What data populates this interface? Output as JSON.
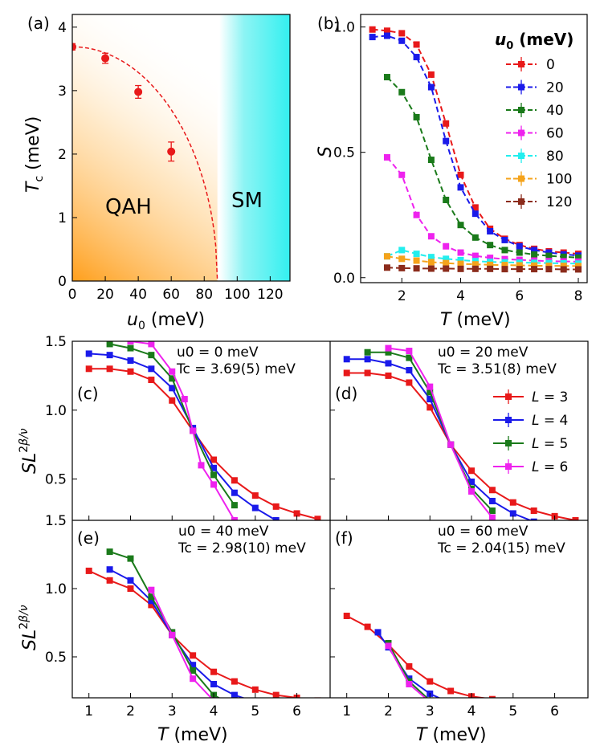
{
  "figure": {
    "panels": {
      "a": {
        "label": "(a)",
        "region_qah": "QAH",
        "region_sm": "SM"
      },
      "b": {
        "label": "(b)",
        "legend_title": "u0 (meV)"
      },
      "c": {
        "label": "(c)",
        "u0_text": "u0 = 0 meV",
        "tc_text": "Tc = 3.69(5) meV"
      },
      "d": {
        "label": "(d)",
        "u0_text": "u0 = 20 meV",
        "tc_text": "Tc = 3.51(8) meV"
      },
      "e": {
        "label": "(e)",
        "u0_text": "u0 = 40 meV",
        "tc_text": "Tc = 2.98(10) meV"
      },
      "f": {
        "label": "(f)",
        "u0_text": "u0 = 60 meV",
        "tc_text": "Tc = 2.04(15) meV"
      }
    }
  },
  "chart_data": [
    {
      "id": "a",
      "type": "scatter",
      "xlabel": "u0 (meV)",
      "ylabel": "Tc (meV)",
      "xlim": [
        0,
        132
      ],
      "ylim": [
        0,
        4.2
      ],
      "xticks": [
        0,
        20,
        40,
        60,
        80,
        100,
        120
      ],
      "yticks": [
        0,
        1,
        2,
        3,
        4
      ],
      "x": [
        0,
        20,
        40,
        60
      ],
      "y": [
        3.69,
        3.51,
        2.98,
        2.04
      ],
      "err": [
        0.05,
        0.08,
        0.1,
        0.15
      ],
      "fit_curve": {
        "Tc0": 3.69,
        "uc": 88
      },
      "boundary_u0": 88,
      "regions": [
        "QAH",
        "SM"
      ],
      "colors": {
        "points": "#e8191a",
        "qah": "#ff9f1c",
        "sm": "#33f0f0"
      }
    },
    {
      "id": "b",
      "type": "line",
      "xlabel": "T (meV)",
      "ylabel": "S",
      "xlim": [
        0.6,
        8.3
      ],
      "ylim": [
        -0.02,
        1.05
      ],
      "xticks": [
        2,
        4,
        6,
        8
      ],
      "yticks": [
        0.0,
        0.5,
        1.0
      ],
      "legend_title": "u0 (meV)",
      "series": [
        {
          "name": "0",
          "color": "#e8191a",
          "x": [
            1,
            1.5,
            2,
            2.5,
            3,
            3.5,
            4,
            4.5,
            5,
            5.5,
            6,
            6.5,
            7,
            7.5,
            8
          ],
          "y": [
            0.99,
            0.985,
            0.975,
            0.93,
            0.81,
            0.615,
            0.41,
            0.28,
            0.195,
            0.155,
            0.13,
            0.115,
            0.105,
            0.1,
            0.095
          ]
        },
        {
          "name": "20",
          "color": "#1a1aea",
          "x": [
            1,
            1.5,
            2,
            2.5,
            3,
            3.5,
            4,
            4.5,
            5,
            5.5,
            6,
            6.5,
            7,
            7.5,
            8
          ],
          "y": [
            0.96,
            0.965,
            0.945,
            0.88,
            0.76,
            0.545,
            0.36,
            0.255,
            0.185,
            0.15,
            0.125,
            0.11,
            0.1,
            0.093,
            0.088
          ]
        },
        {
          "name": "40",
          "color": "#1a7a1a",
          "x": [
            1.5,
            2,
            2.5,
            3,
            3.5,
            4,
            4.5,
            5,
            5.5,
            6,
            6.5,
            7,
            7.5,
            8
          ],
          "y": [
            0.8,
            0.74,
            0.64,
            0.47,
            0.31,
            0.21,
            0.16,
            0.13,
            0.11,
            0.1,
            0.092,
            0.087,
            0.083,
            0.08
          ]
        },
        {
          "name": "60",
          "color": "#ee22ee",
          "x": [
            1.5,
            2,
            2.5,
            3,
            3.5,
            4,
            4.5,
            5,
            5.5,
            6,
            6.5,
            7,
            7.5,
            8
          ],
          "y": [
            0.48,
            0.41,
            0.25,
            0.165,
            0.125,
            0.1,
            0.087,
            0.079,
            0.074,
            0.071,
            0.068,
            0.066,
            0.065,
            0.064
          ]
        },
        {
          "name": "80",
          "color": "#22eeee",
          "x": [
            1.5,
            2,
            2.5,
            3,
            3.5,
            4,
            4.5,
            5,
            5.5,
            6,
            6.5,
            7,
            7.5,
            8
          ],
          "y": [
            0.085,
            0.11,
            0.095,
            0.082,
            0.075,
            0.07,
            0.066,
            0.063,
            0.061,
            0.06,
            0.059,
            0.058,
            0.057,
            0.056
          ]
        },
        {
          "name": "100",
          "color": "#f5a31b",
          "x": [
            1.5,
            2,
            2.5,
            3,
            3.5,
            4,
            4.5,
            5,
            5.5,
            6,
            6.5,
            7,
            7.5,
            8
          ],
          "y": [
            0.085,
            0.075,
            0.068,
            0.062,
            0.058,
            0.055,
            0.053,
            0.051,
            0.05,
            0.049,
            0.048,
            0.047,
            0.047,
            0.046
          ]
        },
        {
          "name": "120",
          "color": "#8b2b1b",
          "x": [
            1.5,
            2,
            2.5,
            3,
            3.5,
            4,
            4.5,
            5,
            5.5,
            6,
            6.5,
            7,
            7.5,
            8
          ],
          "y": [
            0.04,
            0.038,
            0.037,
            0.036,
            0.036,
            0.035,
            0.035,
            0.035,
            0.034,
            0.034,
            0.034,
            0.034,
            0.033,
            0.033
          ]
        }
      ]
    },
    {
      "id": "c",
      "type": "line",
      "xlim": [
        0.6,
        6.8
      ],
      "ylim": [
        0.2,
        1.5
      ],
      "ylabel": "SL^(2β/ν)",
      "yticks": [
        0.5,
        1.0,
        1.5
      ],
      "series": [
        {
          "name": "L = 3",
          "color": "#e8191a",
          "x": [
            1,
            1.5,
            2,
            2.5,
            3,
            3.5,
            4,
            4.5,
            5,
            5.5,
            6,
            6.5
          ],
          "y": [
            1.3,
            1.3,
            1.28,
            1.22,
            1.07,
            0.85,
            0.64,
            0.49,
            0.38,
            0.3,
            0.25,
            0.21
          ]
        },
        {
          "name": "L = 4",
          "color": "#1a1aea",
          "x": [
            1,
            1.5,
            2,
            2.5,
            3,
            3.5,
            4,
            4.5,
            5,
            5.5
          ],
          "y": [
            1.41,
            1.4,
            1.36,
            1.3,
            1.16,
            0.87,
            0.58,
            0.4,
            0.29,
            0.2
          ]
        },
        {
          "name": "L = 5",
          "color": "#1a7a1a",
          "x": [
            1.5,
            2,
            2.5,
            3,
            3.5,
            4,
            4.5
          ],
          "y": [
            1.48,
            1.45,
            1.4,
            1.23,
            0.85,
            0.53,
            0.31
          ]
        },
        {
          "name": "L = 6",
          "color": "#ee22ee",
          "x": [
            2,
            2.5,
            3,
            3.3,
            3.5,
            3.7,
            4,
            4.5
          ],
          "y": [
            1.5,
            1.48,
            1.28,
            1.08,
            0.85,
            0.6,
            0.46,
            0.2
          ]
        }
      ]
    },
    {
      "id": "d",
      "type": "line",
      "xlim": [
        0.6,
        6.8
      ],
      "ylim": [
        0.2,
        1.5
      ],
      "series": [
        {
          "name": "L = 3",
          "color": "#e8191a",
          "x": [
            1,
            1.5,
            2,
            2.5,
            3,
            3.5,
            4,
            4.5,
            5,
            5.5,
            6,
            6.5
          ],
          "y": [
            1.27,
            1.27,
            1.25,
            1.2,
            1.02,
            0.75,
            0.56,
            0.42,
            0.33,
            0.27,
            0.23,
            0.2
          ]
        },
        {
          "name": "L = 4",
          "color": "#1a1aea",
          "x": [
            1,
            1.5,
            2,
            2.5,
            3,
            3.5,
            4,
            4.5,
            5,
            5.5
          ],
          "y": [
            1.37,
            1.37,
            1.34,
            1.29,
            1.08,
            0.75,
            0.48,
            0.34,
            0.25,
            0.19
          ]
        },
        {
          "name": "L = 5",
          "color": "#1a7a1a",
          "x": [
            1.5,
            2,
            2.5,
            3,
            3.5,
            4,
            4.5
          ],
          "y": [
            1.42,
            1.42,
            1.38,
            1.13,
            0.75,
            0.43,
            0.27
          ]
        },
        {
          "name": "L = 6",
          "color": "#ee22ee",
          "x": [
            2,
            2.5,
            3,
            3.5,
            4,
            4.5
          ],
          "y": [
            1.45,
            1.43,
            1.17,
            0.75,
            0.41,
            0.22
          ]
        }
      ]
    },
    {
      "id": "e",
      "type": "line",
      "xlim": [
        0.6,
        6.8
      ],
      "ylim": [
        0.2,
        1.5
      ],
      "xlabel": "T (meV)",
      "ylabel": "SL^(2β/ν)",
      "xticks": [
        1,
        2,
        3,
        4,
        5,
        6
      ],
      "yticks": [
        0.5,
        1.0,
        1.5
      ],
      "series": [
        {
          "name": "L = 3",
          "color": "#e8191a",
          "x": [
            1,
            1.5,
            2,
            2.5,
            3,
            3.5,
            4,
            4.5,
            5,
            5.5,
            6,
            6.5
          ],
          "y": [
            1.13,
            1.06,
            1.0,
            0.88,
            0.66,
            0.51,
            0.39,
            0.32,
            0.26,
            0.22,
            0.2,
            0.18
          ]
        },
        {
          "name": "L = 4",
          "color": "#1a1aea",
          "x": [
            1.5,
            2,
            2.5,
            3,
            3.5,
            4,
            4.5,
            5
          ],
          "y": [
            1.14,
            1.06,
            0.91,
            0.66,
            0.44,
            0.3,
            0.22,
            0.17
          ]
        },
        {
          "name": "L = 5",
          "color": "#1a7a1a",
          "x": [
            1.5,
            2,
            2.5,
            3,
            3.5,
            4,
            4.5
          ],
          "y": [
            1.27,
            1.22,
            0.94,
            0.68,
            0.4,
            0.22,
            0.14
          ]
        },
        {
          "name": "L = 6",
          "color": "#ee22ee",
          "x": [
            2.5,
            3,
            3.5,
            4
          ],
          "y": [
            0.99,
            0.66,
            0.34,
            0.18
          ]
        }
      ]
    },
    {
      "id": "f",
      "type": "line",
      "xlim": [
        0.6,
        6.8
      ],
      "ylim": [
        0.2,
        1.5
      ],
      "xlabel": "T (meV)",
      "xticks": [
        1,
        2,
        3,
        4,
        5,
        6
      ],
      "series": [
        {
          "name": "L = 3",
          "color": "#e8191a",
          "x": [
            1,
            1.5,
            2,
            2.5,
            3,
            3.5,
            4,
            4.5,
            5
          ],
          "y": [
            0.8,
            0.72,
            0.59,
            0.43,
            0.32,
            0.25,
            0.21,
            0.19,
            0.17
          ]
        },
        {
          "name": "L = 4",
          "color": "#1a1aea",
          "x": [
            1.75,
            2,
            2.5,
            3,
            3.5
          ],
          "y": [
            0.68,
            0.57,
            0.34,
            0.23,
            0.16
          ]
        },
        {
          "name": "L = 5",
          "color": "#1a7a1a",
          "x": [
            2,
            2.5,
            3
          ],
          "y": [
            0.6,
            0.32,
            0.18
          ]
        },
        {
          "name": "L = 6",
          "color": "#ee22ee",
          "x": [
            2,
            2.5,
            3
          ],
          "y": [
            0.58,
            0.3,
            0.17
          ]
        }
      ]
    }
  ]
}
